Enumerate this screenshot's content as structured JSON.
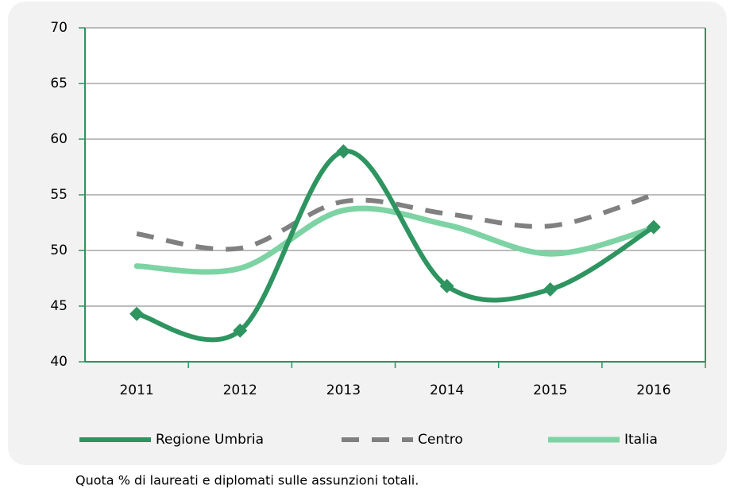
{
  "chart_data": {
    "type": "line",
    "categories": [
      "2011",
      "2012",
      "2013",
      "2014",
      "2015",
      "2016"
    ],
    "series": [
      {
        "name": "Regione Umbria",
        "color": "#2e9460",
        "values": [
          44.3,
          42.8,
          58.9,
          46.8,
          46.5,
          52.1
        ]
      },
      {
        "name": "Centro",
        "color": "#808080",
        "values": [
          51.5,
          50.2,
          54.4,
          53.3,
          52.2,
          55.0
        ]
      },
      {
        "name": "Italia",
        "color": "#7dd3a3",
        "values": [
          48.6,
          48.4,
          53.6,
          52.3,
          49.7,
          52.0
        ]
      }
    ],
    "ylim": [
      40,
      70
    ],
    "yticks": [
      40,
      45,
      50,
      55,
      60,
      65,
      70
    ],
    "grid": true,
    "legend": "bottom",
    "caption": "Quota % di laureati e diplomati sulle assunzioni totali."
  }
}
